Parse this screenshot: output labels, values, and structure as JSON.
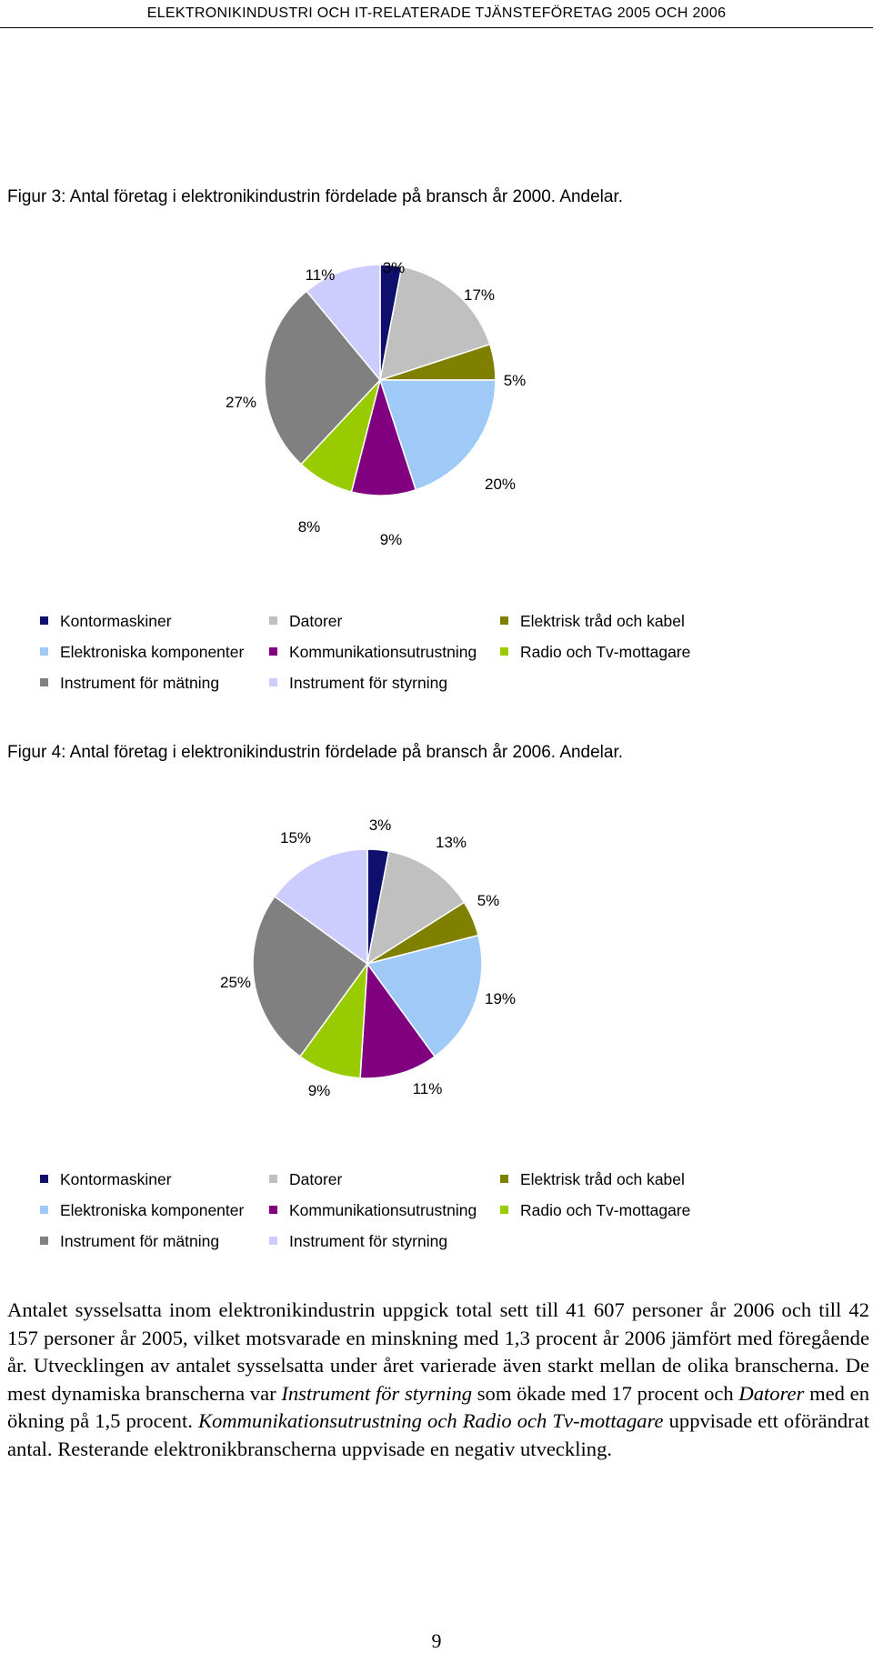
{
  "header": {
    "running_title": "ELEKTRONIKINDUSTRI OCH IT-RELATERADE TJÄNSTEFÖRETAG 2005 OCH 2006"
  },
  "figures": [
    {
      "caption": "Figur 3: Antal företag i elektronikindustrin fördelade på bransch år 2000. Andelar."
    },
    {
      "caption": "Figur 4: Antal företag i elektronikindustrin fördelade på bransch år 2006. Andelar."
    }
  ],
  "legend": {
    "items": [
      {
        "label": "Kontormaskiner",
        "color": "#0f0f6e"
      },
      {
        "label": "Datorer",
        "color": "#c0c0c0"
      },
      {
        "label": "Elektrisk tråd och kabel",
        "color": "#808000"
      },
      {
        "label": "Elektroniska komponenter",
        "color": "#9fcaf8"
      },
      {
        "label": "Kommunikationsutrustning",
        "color": "#800080"
      },
      {
        "label": "Radio och Tv-mottagare",
        "color": "#99cc00"
      },
      {
        "label": "Instrument för mätning",
        "color": "#808080"
      },
      {
        "label": "Instrument för styrning",
        "color": "#ccccff"
      }
    ]
  },
  "chart_data": [
    {
      "type": "pie",
      "title": "Figur 3: Antal företag i elektronikindustrin fördelade på bransch år 2000. Andelar.",
      "categories": [
        "Kontormaskiner",
        "Datorer",
        "Elektrisk tråd och kabel",
        "Elektroniska komponenter",
        "Kommunikationsutrustning",
        "Radio och Tv-mottagare",
        "Instrument för mätning",
        "Instrument för styrning"
      ],
      "values": [
        3,
        17,
        5,
        20,
        9,
        8,
        27,
        11
      ],
      "labels": [
        "3%",
        "17%",
        "5%",
        "20%",
        "9%",
        "8%",
        "27%",
        "11%"
      ],
      "colors": [
        "#0f0f6e",
        "#c0c0c0",
        "#808000",
        "#9fcaf8",
        "#800080",
        "#99cc00",
        "#808080",
        "#ccccff"
      ]
    },
    {
      "type": "pie",
      "title": "Figur 4: Antal företag i elektronikindustrin fördelade på bransch år 2006. Andelar.",
      "categories": [
        "Kontormaskiner",
        "Datorer",
        "Elektrisk tråd och kabel",
        "Elektroniska komponenter",
        "Kommunikationsutrustning",
        "Radio och Tv-mottagare",
        "Instrument för mätning",
        "Instrument för styrning"
      ],
      "values": [
        3,
        13,
        5,
        19,
        11,
        9,
        25,
        15
      ],
      "labels": [
        "3%",
        "13%",
        "5%",
        "19%",
        "11%",
        "9%",
        "25%",
        "15%"
      ],
      "colors": [
        "#0f0f6e",
        "#c0c0c0",
        "#808000",
        "#9fcaf8",
        "#800080",
        "#99cc00",
        "#808080",
        "#ccccff"
      ]
    }
  ],
  "body": {
    "p1": "Antalet sysselsatta inom elektronikindustrin uppgick total sett till 41 607 personer år 2006 och till 42 157 personer år 2005, vilket motsvarade en minskning med 1,3 procent år 2006 jämfört med föregående år. Utvecklingen av antalet sysselsatta under året varierade även starkt mellan de olika branscherna. De mest dynamiska branscherna var ",
    "em1": "Instrument för styrning",
    "p2": " som ökade med 17 procent och ",
    "em2": "Datorer",
    "p3": " med en ökning på 1,5 procent. ",
    "em3": "Kommunikationsutrustning och Radio och Tv-mottagare",
    "p4": " uppvisade ett oförändrat antal. Resterande elektronikbranscherna uppvisade en negativ utveckling."
  },
  "page_number": "9"
}
